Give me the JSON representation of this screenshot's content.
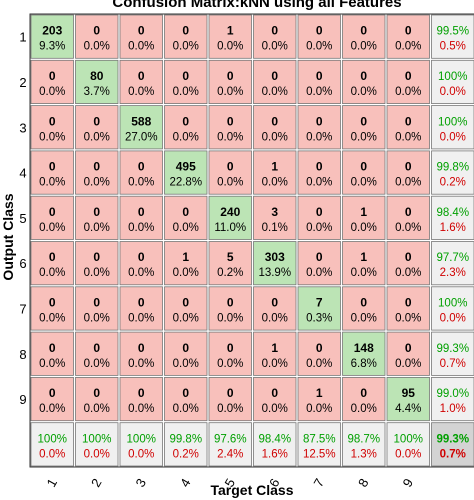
{
  "chart_data": {
    "type": "heatmap",
    "title": "Confusion Matrix:kNN using all Features",
    "xlabel": "Target Class",
    "ylabel": "Output Class",
    "x_tick_labels": [
      "1",
      "2",
      "3",
      "4",
      "5",
      "6",
      "7",
      "8",
      "9"
    ],
    "y_tick_labels": [
      "1",
      "2",
      "3",
      "4",
      "5",
      "6",
      "7",
      "8",
      "9"
    ],
    "colors": {
      "correct": "#bce4b5",
      "incorrect": "#f8c0bb",
      "summary": "#f0f0f0",
      "total": "#d3d3d3",
      "good_text": "#00a000",
      "bad_text": "#d00000"
    },
    "counts": [
      [
        203,
        0,
        0,
        0,
        1,
        0,
        0,
        0,
        0
      ],
      [
        0,
        80,
        0,
        0,
        0,
        0,
        0,
        0,
        0
      ],
      [
        0,
        0,
        588,
        0,
        0,
        0,
        0,
        0,
        0
      ],
      [
        0,
        0,
        0,
        495,
        0,
        1,
        0,
        0,
        0
      ],
      [
        0,
        0,
        0,
        0,
        240,
        3,
        0,
        1,
        0
      ],
      [
        0,
        0,
        0,
        1,
        5,
        303,
        0,
        1,
        0
      ],
      [
        0,
        0,
        0,
        0,
        0,
        0,
        7,
        0,
        0
      ],
      [
        0,
        0,
        0,
        0,
        0,
        1,
        0,
        148,
        0
      ],
      [
        0,
        0,
        0,
        0,
        0,
        0,
        1,
        0,
        95
      ]
    ],
    "percents": [
      [
        "9.3%",
        "0.0%",
        "0.0%",
        "0.0%",
        "0.0%",
        "0.0%",
        "0.0%",
        "0.0%",
        "0.0%"
      ],
      [
        "0.0%",
        "3.7%",
        "0.0%",
        "0.0%",
        "0.0%",
        "0.0%",
        "0.0%",
        "0.0%",
        "0.0%"
      ],
      [
        "0.0%",
        "0.0%",
        "27.0%",
        "0.0%",
        "0.0%",
        "0.0%",
        "0.0%",
        "0.0%",
        "0.0%"
      ],
      [
        "0.0%",
        "0.0%",
        "0.0%",
        "22.8%",
        "0.0%",
        "0.0%",
        "0.0%",
        "0.0%",
        "0.0%"
      ],
      [
        "0.0%",
        "0.0%",
        "0.0%",
        "0.0%",
        "11.0%",
        "0.1%",
        "0.0%",
        "0.0%",
        "0.0%"
      ],
      [
        "0.0%",
        "0.0%",
        "0.0%",
        "0.0%",
        "0.2%",
        "13.9%",
        "0.0%",
        "0.0%",
        "0.0%"
      ],
      [
        "0.0%",
        "0.0%",
        "0.0%",
        "0.0%",
        "0.0%",
        "0.0%",
        "0.3%",
        "0.0%",
        "0.0%"
      ],
      [
        "0.0%",
        "0.0%",
        "0.0%",
        "0.0%",
        "0.0%",
        "0.0%",
        "0.0%",
        "6.8%",
        "0.0%"
      ],
      [
        "0.0%",
        "0.0%",
        "0.0%",
        "0.0%",
        "0.0%",
        "0.0%",
        "0.0%",
        "0.0%",
        "4.4%"
      ]
    ],
    "row_summary": [
      [
        "99.5%",
        "0.5%"
      ],
      [
        "100%",
        "0.0%"
      ],
      [
        "100%",
        "0.0%"
      ],
      [
        "99.8%",
        "0.2%"
      ],
      [
        "98.4%",
        "1.6%"
      ],
      [
        "97.7%",
        "2.3%"
      ],
      [
        "100%",
        "0.0%"
      ],
      [
        "99.3%",
        "0.7%"
      ],
      [
        "99.0%",
        "1.0%"
      ]
    ],
    "col_summary": [
      [
        "100%",
        "0.0%"
      ],
      [
        "100%",
        "0.0%"
      ],
      [
        "100%",
        "0.0%"
      ],
      [
        "99.8%",
        "0.2%"
      ],
      [
        "97.6%",
        "2.4%"
      ],
      [
        "98.4%",
        "1.6%"
      ],
      [
        "87.5%",
        "12.5%"
      ],
      [
        "98.7%",
        "1.3%"
      ],
      [
        "100%",
        "0.0%"
      ]
    ],
    "overall": [
      "99.3%",
      "0.7%"
    ]
  }
}
